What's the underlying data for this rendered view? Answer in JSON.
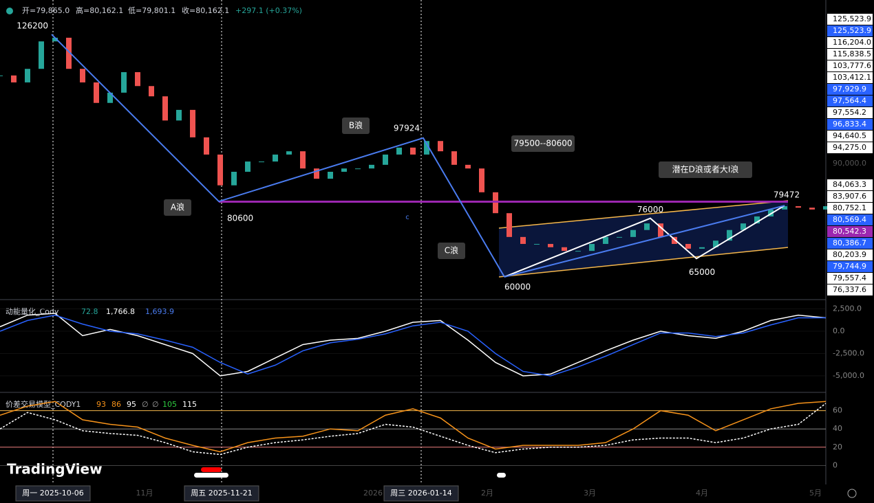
{
  "chart_data": {
    "type": "candlestick",
    "header": {
      "open": "开=79,865.0",
      "high": "高=80,162.1",
      "low": "低=79,801.1",
      "close": "收=80,162.1",
      "change": "+297.1 (+0.37%)"
    },
    "ylim": [
      53800,
      135600
    ],
    "closes": [
      115000,
      113100,
      116800,
      124300,
      125300,
      116800,
      113100,
      107500,
      110300,
      115900,
      112100,
      109300,
      102700,
      105600,
      98100,
      93400,
      85000,
      88700,
      91500,
      91500,
      93400,
      94300,
      89600,
      86800,
      88700,
      89600,
      89600,
      90600,
      93400,
      95300,
      93400,
      97100,
      94300,
      90600,
      89600,
      83100,
      77400,
      70900,
      69000,
      69000,
      68100,
      67100,
      67100,
      69000,
      70900,
      70900,
      72800,
      74600,
      70900,
      69000,
      67700,
      68100,
      69900,
      72800,
      74600,
      76500,
      78400,
      79300,
      78900,
      78400,
      79300
    ],
    "wave_points": [
      126200,
      80600,
      97924,
      60000,
      76000,
      65000,
      79472
    ],
    "annotations": [
      "A浪",
      "B浪",
      "C浪",
      "79500--80600",
      "潜在D浪或者大Ⅰ浪",
      "c"
    ],
    "price_labels": [
      {
        "value": 125523.9,
        "label": "125,523.9",
        "color": "#ffffff"
      },
      {
        "value": 125523.9,
        "label": "125,523.9",
        "color": "#2962ff"
      },
      {
        "value": 116204.0,
        "label": "116,204.0",
        "color": "#ffffff"
      },
      {
        "value": 115838.5,
        "label": "115,838.5",
        "color": "#ffffff"
      },
      {
        "value": 103777.6,
        "label": "103,777.6",
        "color": "#ffffff"
      },
      {
        "value": 103412.1,
        "label": "103,412.1",
        "color": "#ffffff"
      },
      {
        "value": 97929.9,
        "label": "97,929.9",
        "color": "#2962ff"
      },
      {
        "value": 97564.4,
        "label": "97,564.4",
        "color": "#2962ff"
      },
      {
        "value": 97554.2,
        "label": "97,554.2",
        "color": "#ffffff"
      },
      {
        "value": 96833.4,
        "label": "96,833.4",
        "color": "#2962ff"
      },
      {
        "value": 94640.5,
        "label": "94,640.5",
        "color": "#ffffff"
      },
      {
        "value": 94275.0,
        "label": "94,275.0",
        "color": "#ffffff"
      },
      {
        "value": 90000.0,
        "label": "90,000.0",
        "color": "#000000"
      },
      {
        "value": 84063.3,
        "label": "84,063.3",
        "color": "#ffffff"
      },
      {
        "value": 83907.6,
        "label": "83,907.6",
        "color": "#ffffff"
      },
      {
        "value": 80752.1,
        "label": "80,752.1",
        "color": "#ffffff"
      },
      {
        "value": 80569.4,
        "label": "80,569.4",
        "color": "#2962ff"
      },
      {
        "value": 80542.3,
        "label": "80,542.3",
        "color": "#9c27b0"
      },
      {
        "value": 80386.7,
        "label": "80,386.7",
        "color": "#2962ff"
      },
      {
        "value": 80203.9,
        "label": "80,203.9",
        "color": "#ffffff"
      },
      {
        "value": 79744.9,
        "label": "79,744.9",
        "color": "#2962ff"
      },
      {
        "value": 79557.4,
        "label": "79,557.4",
        "color": "#ffffff"
      },
      {
        "value": 76337.6,
        "label": "76,337.6",
        "color": "#ffffff"
      }
    ],
    "momentum": {
      "title": "动能量化_Cody",
      "readouts": [
        "72.8",
        "1,766.8",
        "1,693.9"
      ],
      "ylim": [
        -6850,
        3540
      ],
      "yticks": [
        {
          "value": 2500,
          "label": "2,500.0"
        },
        {
          "value": 0,
          "label": "0.0"
        },
        {
          "value": -2500,
          "label": "-2,500.0"
        },
        {
          "value": -5000,
          "label": "-5,000.0"
        }
      ],
      "series": [
        {
          "color": "#ffffff",
          "values": [
            500,
            1800,
            2000,
            -500,
            200,
            -500,
            -1500,
            -2500,
            -5000,
            -4500,
            -3000,
            -1500,
            -1000,
            -800,
            0,
            1000,
            1200,
            -1000,
            -3500,
            -5000,
            -4800,
            -3500,
            -2200,
            -1000,
            0,
            -500,
            -800,
            0,
            1200,
            1800,
            1500
          ]
        },
        {
          "color": "#2962ff",
          "values": [
            0,
            1200,
            1800,
            800,
            0,
            -300,
            -1000,
            -1800,
            -3500,
            -4800,
            -3800,
            -2200,
            -1300,
            -900,
            -300,
            600,
            1000,
            0,
            -2500,
            -4500,
            -5000,
            -4000,
            -2800,
            -1500,
            -200,
            -200,
            -600,
            -200,
            700,
            1500,
            1500
          ]
        }
      ]
    },
    "spread": {
      "title": "价差交易模型_CODY1",
      "readouts": [
        "93",
        "86",
        "95",
        "∅",
        "∅",
        "105",
        "115"
      ],
      "ylim": [
        -17,
        80
      ],
      "yticks": [
        0,
        20,
        40,
        60
      ],
      "series": [
        {
          "color": "#f7931a",
          "values": [
            55,
            65,
            70,
            50,
            45,
            42,
            30,
            22,
            15,
            25,
            30,
            32,
            40,
            38,
            55,
            62,
            52,
            30,
            18,
            22,
            22,
            22,
            25,
            40,
            60,
            55,
            38,
            50,
            62,
            68,
            70
          ]
        },
        {
          "color": "#ffffff",
          "values": [
            40,
            58,
            50,
            38,
            35,
            33,
            25,
            15,
            12,
            20,
            25,
            28,
            32,
            35,
            45,
            42,
            32,
            22,
            14,
            18,
            20,
            20,
            22,
            28,
            30,
            30,
            25,
            30,
            40,
            45,
            68
          ]
        }
      ]
    },
    "dates": [
      "周一 2025-10-06",
      "11月",
      "周五 2025-11-21",
      "2026",
      "周三 2026-01-14",
      "2月",
      "3月",
      "4月",
      "5月"
    ],
    "brand": "TradingView"
  }
}
